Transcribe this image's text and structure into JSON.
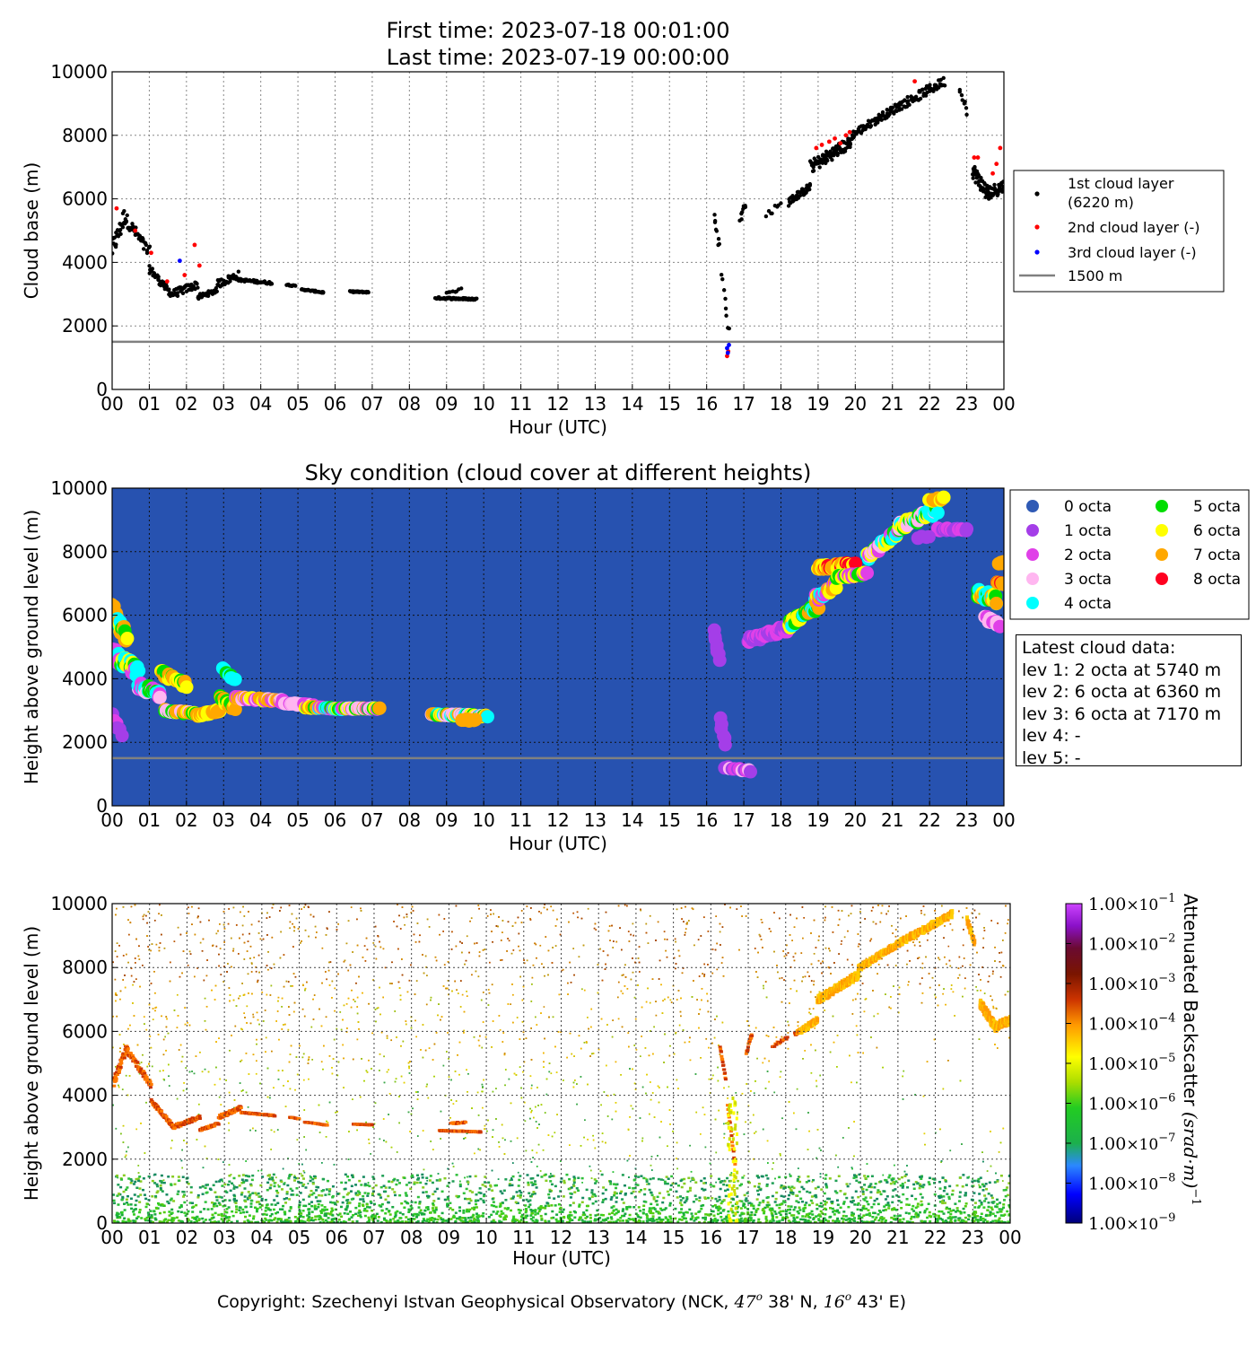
{
  "header": {
    "first_time": "First time: 2023-07-18 00:01:00",
    "last_time": "Last time: 2023-07-19 00:00:00"
  },
  "copyright": {
    "prefix": "Copyright: Szechenyi Istvan Geophysical Observatory (NCK, ",
    "lat_deg": "47",
    "lat_min": " 38' N, ",
    "lon_deg": "16",
    "lon_min": " 43' E)",
    "deg_sup": "o"
  },
  "colors": {
    "layer1": "#000000",
    "layer2": "#ff0000",
    "layer3": "#0000ff",
    "ref_line": "#808080",
    "sky_bg": "#2752b0",
    "octa": [
      "#2f5ab5",
      "#a43ee8",
      "#e040e8",
      "#ffb6f0",
      "#00ffff",
      "#00dd00",
      "#ffff00",
      "#ffa800",
      "#ff0020"
    ]
  },
  "chart_data": [
    {
      "type": "scatter",
      "id": "cloud-base",
      "title": "",
      "xlabel": "Hour (UTC)",
      "ylabel": "Cloud base (m)",
      "xlim": [
        0,
        24
      ],
      "ylim": [
        0,
        10000
      ],
      "xticks": [
        "00",
        "01",
        "02",
        "03",
        "04",
        "05",
        "06",
        "07",
        "08",
        "09",
        "10",
        "11",
        "12",
        "13",
        "14",
        "15",
        "16",
        "17",
        "18",
        "19",
        "20",
        "21",
        "22",
        "23",
        "00"
      ],
      "yticks": [
        0,
        2000,
        4000,
        6000,
        8000,
        10000
      ],
      "grid": true,
      "legend_position": "right",
      "reference_line": {
        "y": 1500,
        "label": "1500 m"
      },
      "series": [
        {
          "name": "1st cloud layer",
          "name_line2": "(6220 m)",
          "segments": [
            {
              "x0": 0.0,
              "x1": 0.35,
              "y0": 4400,
              "y1": 5500,
              "n": 25,
              "j": 600
            },
            {
              "x0": 0.35,
              "x1": 1.0,
              "y0": 5400,
              "y1": 4300,
              "n": 35,
              "j": 400
            },
            {
              "x0": 1.0,
              "x1": 1.6,
              "y0": 3800,
              "y1": 3000,
              "n": 40,
              "j": 250
            },
            {
              "x0": 1.6,
              "x1": 2.3,
              "y0": 3000,
              "y1": 3300,
              "n": 40,
              "j": 250
            },
            {
              "x0": 2.3,
              "x1": 2.8,
              "y0": 2900,
              "y1": 3100,
              "n": 30,
              "j": 150
            },
            {
              "x0": 2.8,
              "x1": 3.4,
              "y0": 3300,
              "y1": 3600,
              "n": 30,
              "j": 250
            },
            {
              "x0": 3.4,
              "x1": 4.3,
              "y0": 3450,
              "y1": 3350,
              "n": 45,
              "j": 80
            },
            {
              "x0": 4.7,
              "x1": 4.95,
              "y0": 3300,
              "y1": 3250,
              "n": 12,
              "j": 40
            },
            {
              "x0": 5.1,
              "x1": 5.7,
              "y0": 3150,
              "y1": 3050,
              "n": 35,
              "j": 40
            },
            {
              "x0": 6.4,
              "x1": 6.9,
              "y0": 3080,
              "y1": 3060,
              "n": 35,
              "j": 40
            },
            {
              "x0": 8.7,
              "x1": 9.8,
              "y0": 2880,
              "y1": 2840,
              "n": 60,
              "j": 60
            },
            {
              "x0": 9.0,
              "x1": 9.4,
              "y0": 3100,
              "y1": 3150,
              "n": 8,
              "j": 120
            },
            {
              "x0": 16.2,
              "x1": 16.35,
              "y0": 5500,
              "y1": 4500,
              "n": 8,
              "j": 200
            },
            {
              "x0": 16.4,
              "x1": 16.6,
              "y0": 3700,
              "y1": 1800,
              "n": 8,
              "j": 300
            },
            {
              "x0": 16.9,
              "x1": 17.05,
              "y0": 5300,
              "y1": 5900,
              "n": 8,
              "j": 250
            },
            {
              "x0": 17.6,
              "x1": 18.0,
              "y0": 5500,
              "y1": 5800,
              "n": 8,
              "j": 250
            },
            {
              "x0": 18.2,
              "x1": 18.8,
              "y0": 5900,
              "y1": 6400,
              "n": 40,
              "j": 250
            },
            {
              "x0": 18.8,
              "x1": 19.9,
              "y0": 7000,
              "y1": 7800,
              "n": 80,
              "j": 400
            },
            {
              "x0": 19.9,
              "x1": 21.0,
              "y0": 8000,
              "y1": 8800,
              "n": 60,
              "j": 250
            },
            {
              "x0": 21.0,
              "x1": 22.4,
              "y0": 8800,
              "y1": 9700,
              "n": 70,
              "j": 300
            },
            {
              "x0": 22.8,
              "x1": 23.0,
              "y0": 9500,
              "y1": 8800,
              "n": 8,
              "j": 300
            },
            {
              "x0": 23.15,
              "x1": 23.6,
              "y0": 6900,
              "y1": 6100,
              "n": 45,
              "j": 500
            },
            {
              "x0": 23.6,
              "x1": 24.0,
              "y0": 6200,
              "y1": 6400,
              "n": 30,
              "j": 400
            }
          ]
        },
        {
          "name": "2nd cloud layer (-)",
          "points": [
            [
              0.12,
              5700
            ],
            [
              0.62,
              5000
            ],
            [
              1.05,
              4300
            ],
            [
              1.48,
              3400
            ],
            [
              1.95,
              3600
            ],
            [
              2.22,
              4550
            ],
            [
              2.35,
              3900
            ],
            [
              16.55,
              1050
            ],
            [
              16.58,
              1200
            ],
            [
              18.95,
              7600
            ],
            [
              19.1,
              7700
            ],
            [
              19.3,
              7800
            ],
            [
              19.45,
              7900
            ],
            [
              19.6,
              7750
            ],
            [
              19.75,
              8000
            ],
            [
              19.85,
              8100
            ],
            [
              21.6,
              9700
            ],
            [
              23.2,
              7300
            ],
            [
              23.3,
              7300
            ],
            [
              23.7,
              6800
            ],
            [
              23.8,
              7100
            ],
            [
              23.9,
              7600
            ]
          ]
        },
        {
          "name": "3rd cloud layer (-)",
          "points": [
            [
              1.82,
              4050
            ],
            [
              16.55,
              1300
            ],
            [
              16.6,
              1400
            ],
            [
              16.57,
              1150
            ]
          ]
        }
      ]
    },
    {
      "type": "scatter",
      "id": "sky-condition",
      "title": "Sky condition (cloud cover at different heights)",
      "xlabel": "Hour (UTC)",
      "ylabel": "Height above ground level (m)",
      "xlim": [
        0,
        24
      ],
      "ylim": [
        0,
        10000
      ],
      "grid": true,
      "legend_position": "right",
      "legend": [
        "0 octa",
        "1 octa",
        "2 octa",
        "3 octa",
        "4 octa",
        "5 octa",
        "6 octa",
        "7 octa",
        "8 octa"
      ],
      "reference_line": {
        "y": 1500
      },
      "clusters": [
        {
          "x0": 0.0,
          "x1": 0.4,
          "y0": 6200,
          "y1": 5200,
          "n": 30,
          "j": 400,
          "o": [
            6,
            7,
            5,
            4
          ]
        },
        {
          "x0": 0.0,
          "x1": 0.7,
          "y0": 4800,
          "y1": 4200,
          "n": 40,
          "j": 400,
          "o": [
            4,
            5,
            6,
            2
          ]
        },
        {
          "x0": 0.0,
          "x1": 0.25,
          "y0": 2800,
          "y1": 2300,
          "n": 6,
          "j": 200,
          "o": [
            2,
            1
          ]
        },
        {
          "x0": 0.7,
          "x1": 1.3,
          "y0": 3800,
          "y1": 3500,
          "n": 30,
          "j": 250,
          "o": [
            2,
            3,
            4,
            5
          ]
        },
        {
          "x0": 1.3,
          "x1": 2.0,
          "y0": 4200,
          "y1": 3800,
          "n": 25,
          "j": 200,
          "o": [
            7,
            6,
            5
          ]
        },
        {
          "x0": 1.4,
          "x1": 2.3,
          "y0": 3000,
          "y1": 2900,
          "n": 30,
          "j": 80,
          "o": [
            5,
            6,
            7,
            3
          ]
        },
        {
          "x0": 2.3,
          "x1": 2.9,
          "y0": 2850,
          "y1": 3000,
          "n": 30,
          "j": 80,
          "o": [
            7,
            6
          ]
        },
        {
          "x0": 2.9,
          "x1": 3.3,
          "y0": 3400,
          "y1": 3100,
          "n": 20,
          "j": 200,
          "o": [
            7,
            6,
            5
          ]
        },
        {
          "x0": 3.0,
          "x1": 3.3,
          "y0": 4300,
          "y1": 4000,
          "n": 8,
          "j": 150,
          "o": [
            5,
            4
          ]
        },
        {
          "x0": 3.3,
          "x1": 4.6,
          "y0": 3400,
          "y1": 3300,
          "n": 50,
          "j": 80,
          "o": [
            7,
            6,
            3,
            2
          ]
        },
        {
          "x0": 4.6,
          "x1": 5.4,
          "y0": 3250,
          "y1": 3150,
          "n": 25,
          "j": 60,
          "o": [
            2,
            3
          ]
        },
        {
          "x0": 5.2,
          "x1": 6.3,
          "y0": 3100,
          "y1": 3050,
          "n": 40,
          "j": 50,
          "o": [
            5,
            6,
            7,
            4,
            2
          ]
        },
        {
          "x0": 6.3,
          "x1": 7.2,
          "y0": 3060,
          "y1": 3060,
          "n": 40,
          "j": 40,
          "o": [
            7,
            6,
            5,
            2,
            3
          ]
        },
        {
          "x0": 8.6,
          "x1": 10.1,
          "y0": 2880,
          "y1": 2820,
          "n": 55,
          "j": 60,
          "o": [
            4,
            5,
            6,
            7,
            3
          ]
        },
        {
          "x0": 9.4,
          "x1": 9.8,
          "y0": 2700,
          "y1": 2700,
          "n": 15,
          "j": 60,
          "o": [
            7
          ]
        },
        {
          "x0": 16.2,
          "x1": 16.35,
          "y0": 5500,
          "y1": 4600,
          "n": 8,
          "j": 150,
          "o": [
            1
          ]
        },
        {
          "x0": 16.35,
          "x1": 16.5,
          "y0": 2800,
          "y1": 1900,
          "n": 6,
          "j": 150,
          "o": [
            1
          ]
        },
        {
          "x0": 16.5,
          "x1": 17.2,
          "y0": 1200,
          "y1": 1100,
          "n": 12,
          "j": 80,
          "o": [
            2,
            3,
            1
          ]
        },
        {
          "x0": 17.1,
          "x1": 18.2,
          "y0": 5200,
          "y1": 5600,
          "n": 40,
          "j": 200,
          "o": [
            1,
            2
          ]
        },
        {
          "x0": 18.2,
          "x1": 19.0,
          "y0": 5700,
          "y1": 6300,
          "n": 30,
          "j": 250,
          "o": [
            5,
            6,
            7,
            4
          ]
        },
        {
          "x0": 18.9,
          "x1": 19.5,
          "y0": 6500,
          "y1": 7000,
          "n": 30,
          "j": 300,
          "o": [
            4,
            2,
            6,
            7
          ]
        },
        {
          "x0": 19.0,
          "x1": 20.0,
          "y0": 7500,
          "y1": 7600,
          "n": 45,
          "j": 150,
          "o": [
            8,
            7,
            6
          ]
        },
        {
          "x0": 19.5,
          "x1": 20.3,
          "y0": 7200,
          "y1": 7300,
          "n": 30,
          "j": 100,
          "o": [
            5,
            6,
            2
          ]
        },
        {
          "x0": 20.3,
          "x1": 21.2,
          "y0": 7800,
          "y1": 8700,
          "n": 40,
          "j": 250,
          "o": [
            2,
            3,
            4,
            5,
            6
          ]
        },
        {
          "x0": 21.2,
          "x1": 22.2,
          "y0": 8800,
          "y1": 9300,
          "n": 45,
          "j": 250,
          "o": [
            4,
            5,
            6,
            3
          ]
        },
        {
          "x0": 22.0,
          "x1": 22.4,
          "y0": 9600,
          "y1": 9700,
          "n": 10,
          "j": 100,
          "o": [
            6,
            7
          ]
        },
        {
          "x0": 22.2,
          "x1": 23.0,
          "y0": 8700,
          "y1": 8700,
          "n": 25,
          "j": 80,
          "o": [
            2,
            1
          ]
        },
        {
          "x0": 21.7,
          "x1": 22.0,
          "y0": 8400,
          "y1": 8500,
          "n": 4,
          "j": 100,
          "o": [
            1
          ]
        },
        {
          "x0": 23.3,
          "x1": 23.8,
          "y0": 6700,
          "y1": 6500,
          "n": 30,
          "j": 300,
          "o": [
            4,
            5,
            6,
            7
          ]
        },
        {
          "x0": 23.5,
          "x1": 23.9,
          "y0": 5900,
          "y1": 5700,
          "n": 12,
          "j": 150,
          "o": [
            3,
            2
          ]
        },
        {
          "x0": 23.8,
          "x1": 24.0,
          "y0": 7000,
          "y1": 7000,
          "n": 10,
          "j": 100,
          "o": [
            8,
            7
          ]
        },
        {
          "x0": 23.85,
          "x1": 24.0,
          "y0": 7600,
          "y1": 7700,
          "n": 4,
          "j": 80,
          "o": [
            7
          ]
        }
      ]
    },
    {
      "type": "heatmap",
      "id": "backscatter",
      "xlabel": "Hour (UTC)",
      "ylabel": "Height above ground level (m)",
      "xlim": [
        0,
        24
      ],
      "ylim": [
        0,
        10000
      ],
      "colorbar": {
        "label": "Attenuated Backscatter ",
        "unit_main": "(srad·m)",
        "unit_exp": "−1",
        "ticks": [
          {
            "m": "1.00",
            "x": "×10",
            "e": "−1"
          },
          {
            "m": "1.00",
            "x": "×10",
            "e": "−2"
          },
          {
            "m": "1.00",
            "x": "×10",
            "e": "−3"
          },
          {
            "m": "1.00",
            "x": "×10",
            "e": "−4"
          },
          {
            "m": "1.00",
            "x": "×10",
            "e": "−5"
          },
          {
            "m": "1.00",
            "x": "×10",
            "e": "−6"
          },
          {
            "m": "1.00",
            "x": "×10",
            "e": "−7"
          },
          {
            "m": "1.00",
            "x": "×10",
            "e": "−8"
          },
          {
            "m": "1.00",
            "x": "×10",
            "e": "−9"
          }
        ]
      }
    }
  ]
}
